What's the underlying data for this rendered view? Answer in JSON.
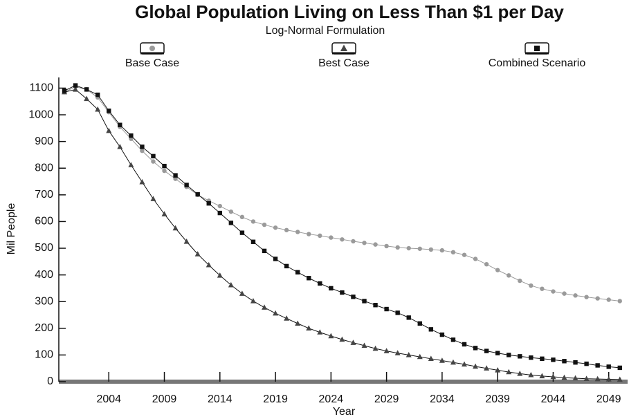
{
  "chart_data": {
    "type": "line",
    "title": "Global Population Living on Less Than $1 per Day",
    "subtitle": "Log-Normal Formulation",
    "x_label": "Year",
    "y_label": "Mil People",
    "x": [
      2000,
      2001,
      2002,
      2003,
      2004,
      2005,
      2006,
      2007,
      2008,
      2009,
      2010,
      2011,
      2012,
      2013,
      2014,
      2015,
      2016,
      2017,
      2018,
      2019,
      2020,
      2021,
      2022,
      2023,
      2024,
      2025,
      2026,
      2027,
      2028,
      2029,
      2030,
      2031,
      2032,
      2033,
      2034,
      2035,
      2036,
      2037,
      2038,
      2039,
      2040,
      2041,
      2042,
      2043,
      2044,
      2045,
      2046,
      2047,
      2048,
      2049,
      2050
    ],
    "series": [
      {
        "name": "Base Case",
        "color": "#9a9a9a",
        "marker": "circle",
        "values": [
          1085,
          1105,
          1095,
          1065,
          1010,
          955,
          910,
          865,
          825,
          790,
          760,
          730,
          700,
          678,
          658,
          637,
          617,
          600,
          588,
          577,
          568,
          561,
          553,
          547,
          540,
          533,
          526,
          520,
          514,
          508,
          503,
          500,
          498,
          495,
          492,
          485,
          475,
          460,
          440,
          418,
          398,
          378,
          360,
          348,
          338,
          330,
          323,
          317,
          312,
          307,
          302
        ]
      },
      {
        "name": "Best Case",
        "color": "#454545",
        "marker": "triangle",
        "values": [
          1085,
          1095,
          1060,
          1020,
          940,
          880,
          812,
          748,
          685,
          628,
          575,
          525,
          478,
          437,
          398,
          362,
          330,
          302,
          278,
          256,
          237,
          218,
          200,
          185,
          171,
          158,
          146,
          135,
          124,
          115,
          107,
          100,
          93,
          86,
          79,
          72,
          65,
          57,
          50,
          43,
          36,
          30,
          25,
          21,
          18,
          15,
          13,
          11,
          10,
          9,
          8
        ]
      },
      {
        "name": "Combined Scenario",
        "color": "#111111",
        "marker": "square",
        "values": [
          1090,
          1110,
          1095,
          1075,
          1015,
          962,
          922,
          880,
          845,
          808,
          773,
          737,
          702,
          668,
          632,
          595,
          558,
          524,
          490,
          460,
          433,
          410,
          388,
          368,
          350,
          334,
          318,
          302,
          287,
          272,
          258,
          240,
          218,
          196,
          176,
          157,
          140,
          126,
          115,
          107,
          100,
          95,
          90,
          86,
          82,
          77,
          72,
          67,
          61,
          56,
          52
        ]
      }
    ],
    "xlim": [
      1999.5,
      2050.7
    ],
    "xticks": [
      2004,
      2009,
      2014,
      2019,
      2024,
      2029,
      2034,
      2039,
      2044,
      2049
    ],
    "ylim": [
      0,
      1140
    ],
    "yticks": [
      0,
      100,
      200,
      300,
      400,
      500,
      600,
      700,
      800,
      900,
      1000,
      1100
    ]
  }
}
